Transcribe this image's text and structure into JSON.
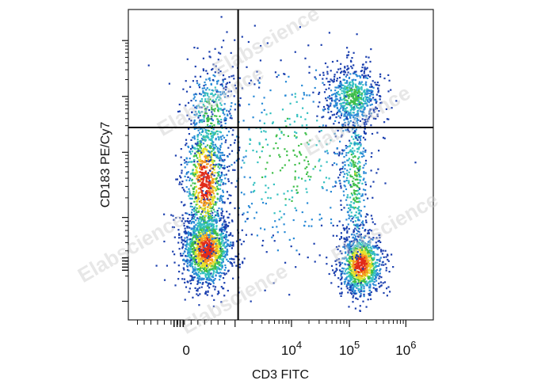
{
  "chart_data": {
    "type": "scatter",
    "subtype": "flow-cytometry-density-dot-plot",
    "xlabel": "CD3 FITC",
    "ylabel": "CD183 PE/Cy7",
    "x_scale": "biexponential",
    "y_scale": "biexponential",
    "x_ticks": [
      {
        "value": 0,
        "base": "0",
        "exp": ""
      },
      {
        "value": 10000,
        "base": "10",
        "exp": "4"
      },
      {
        "value": 100000,
        "base": "10",
        "exp": "5"
      },
      {
        "value": 1000000,
        "base": "10",
        "exp": "6"
      }
    ],
    "y_ticks_labeled": false,
    "grid": false,
    "legend": "none",
    "quadrant_gates": {
      "x_fraction": 0.36,
      "y_fraction": 0.62
    },
    "color_scale": [
      "#1b3fae",
      "#2a8ad6",
      "#34c0c0",
      "#3fbf4a",
      "#e3e32e",
      "#f49a1e",
      "#e12c1a"
    ],
    "populations": [
      {
        "name": "",
        "quadrant": "lower-left",
        "cx": 0.255,
        "cy": 0.24,
        "density": "high"
      },
      {
        "name": "",
        "quadrant": "upper-left",
        "cx": 0.26,
        "cy": 0.55,
        "density": "medium"
      },
      {
        "name": "",
        "quadrant": "lower-right",
        "cx": 0.76,
        "cy": 0.18,
        "density": "high"
      },
      {
        "name": "",
        "quadrant": "upper-right",
        "cx": 0.74,
        "cy": 0.72,
        "density": "medium"
      }
    ],
    "watermark": "Elabscience"
  }
}
